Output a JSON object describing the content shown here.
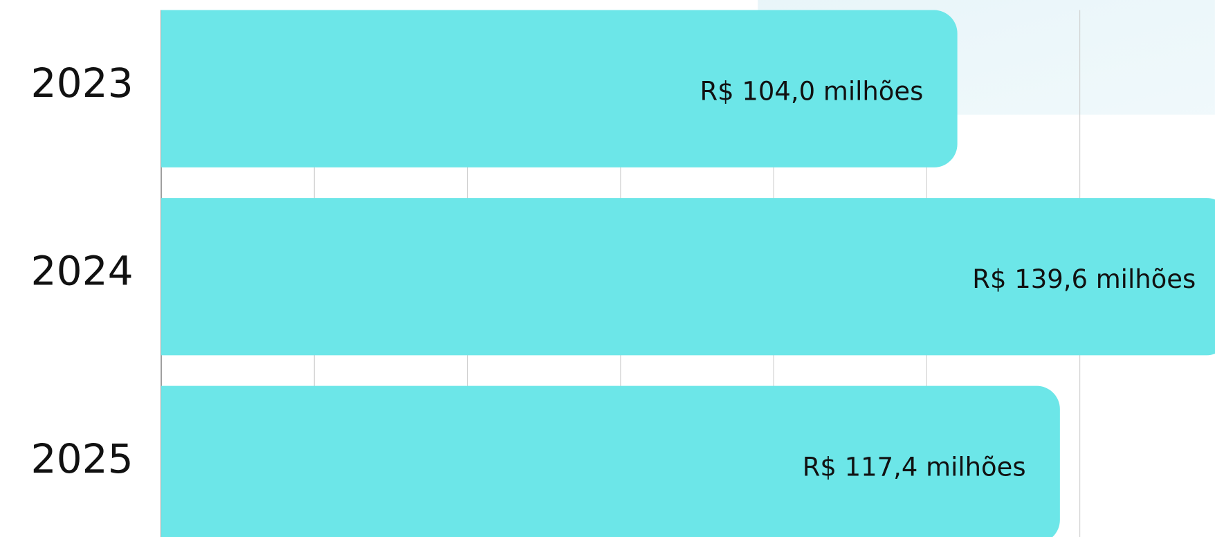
{
  "chart_data": {
    "type": "hbar",
    "categories": [
      "2023",
      "2024",
      "2025"
    ],
    "values": [
      104.0,
      139.6,
      117.4
    ],
    "value_labels": [
      "R$ 104,0 milhões",
      "R$ 139,6 milhões",
      "R$ 117,4 milhões"
    ],
    "color": "#6ce6e8",
    "xlim": [
      0,
      137.65
    ],
    "xticks": [
      0,
      20,
      40,
      60,
      80,
      100,
      120
    ],
    "grid": true
  }
}
